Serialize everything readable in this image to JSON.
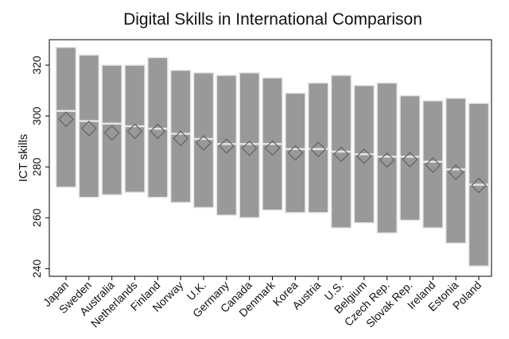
{
  "chart_data": {
    "type": "bar",
    "title": "Digital Skills in International Comparison",
    "xlabel": "",
    "ylabel": "ICT skills",
    "ylim": [
      237,
      330
    ],
    "yticks": [
      240,
      260,
      280,
      300,
      320
    ],
    "grid": false,
    "legend": "none",
    "categories": [
      "Japan",
      "Sweden",
      "Australia",
      "Netherlands",
      "Finland",
      "Norway",
      "U.K.",
      "Germany",
      "Canada",
      "Denmark",
      "Korea",
      "Austria",
      "U.S.",
      "Belgium",
      "Czech Rep.",
      "Slovak Rep.",
      "Ireland",
      "Estonia",
      "Poland"
    ],
    "series": [
      {
        "values": [
          272,
          268,
          269,
          270,
          268,
          266,
          264,
          261,
          260,
          263,
          262,
          262,
          256,
          258,
          254,
          259,
          256,
          250,
          241
        ]
      },
      {
        "values": [
          327,
          324,
          320,
          320,
          323,
          318,
          317,
          316,
          317,
          315,
          309,
          313,
          316,
          312,
          313,
          308,
          306,
          307,
          305
        ]
      },
      {
        "values": [
          302,
          298,
          297,
          296,
          295,
          293,
          291,
          289,
          289,
          289,
          287,
          287,
          286,
          285,
          284,
          284,
          282,
          279,
          273
        ]
      },
      {
        "values": [
          298.7,
          295.1,
          293.4,
          294.0,
          294.0,
          291.2,
          289.4,
          288.2,
          287.3,
          287.4,
          285.5,
          286.9,
          285.0,
          284.2,
          282.7,
          282.9,
          280.7,
          277.9,
          272.7
        ]
      }
    ],
    "colors": {
      "bar": "#999999",
      "bar_edge": "#e6e6e6",
      "marker": "#666666",
      "axis": "#000000"
    }
  }
}
